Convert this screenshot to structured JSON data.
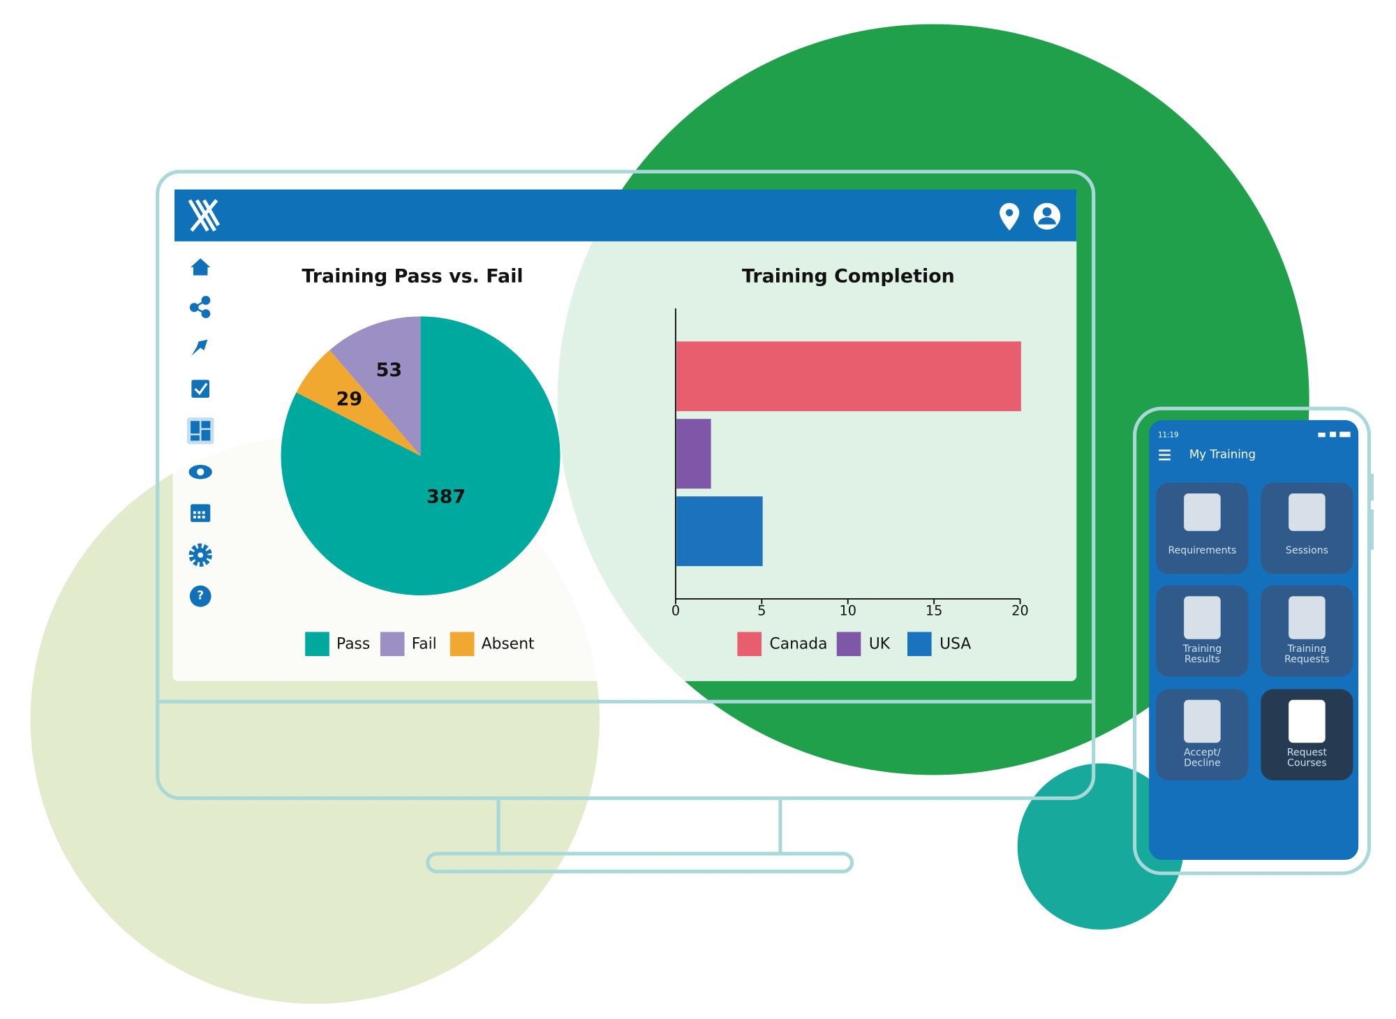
{
  "chart_data": [
    {
      "type": "pie",
      "title": "Training Pass vs. Fail",
      "categories": [
        "Pass",
        "Fail",
        "Absent"
      ],
      "values": [
        387,
        53,
        29
      ],
      "colors": [
        "#00a99d",
        "#9b8fc4",
        "#f0a830"
      ],
      "legend": "bottom"
    },
    {
      "type": "bar",
      "orientation": "horizontal",
      "title": "Training Completion",
      "series": [
        {
          "name": "Canada",
          "color": "#e85e6e",
          "values": [
            20
          ]
        },
        {
          "name": "UK",
          "color": "#7e57a8",
          "values": [
            2
          ]
        },
        {
          "name": "USA",
          "color": "#1b73be",
          "values": [
            5
          ]
        }
      ],
      "xlim": [
        0,
        20
      ],
      "xticks": [
        0,
        5,
        10,
        15,
        20
      ],
      "legend": "bottom"
    }
  ],
  "phone": {
    "time": "11:19",
    "title": "My Training",
    "tiles": [
      {
        "label": [
          "Requirements"
        ]
      },
      {
        "label": [
          "Sessions"
        ]
      },
      {
        "label": [
          "Training",
          "Results"
        ]
      },
      {
        "label": [
          "Training",
          "Requests"
        ]
      },
      {
        "label": [
          "Accept/",
          "Decline"
        ]
      },
      {
        "label": [
          "Request",
          "Courses"
        ]
      }
    ]
  }
}
